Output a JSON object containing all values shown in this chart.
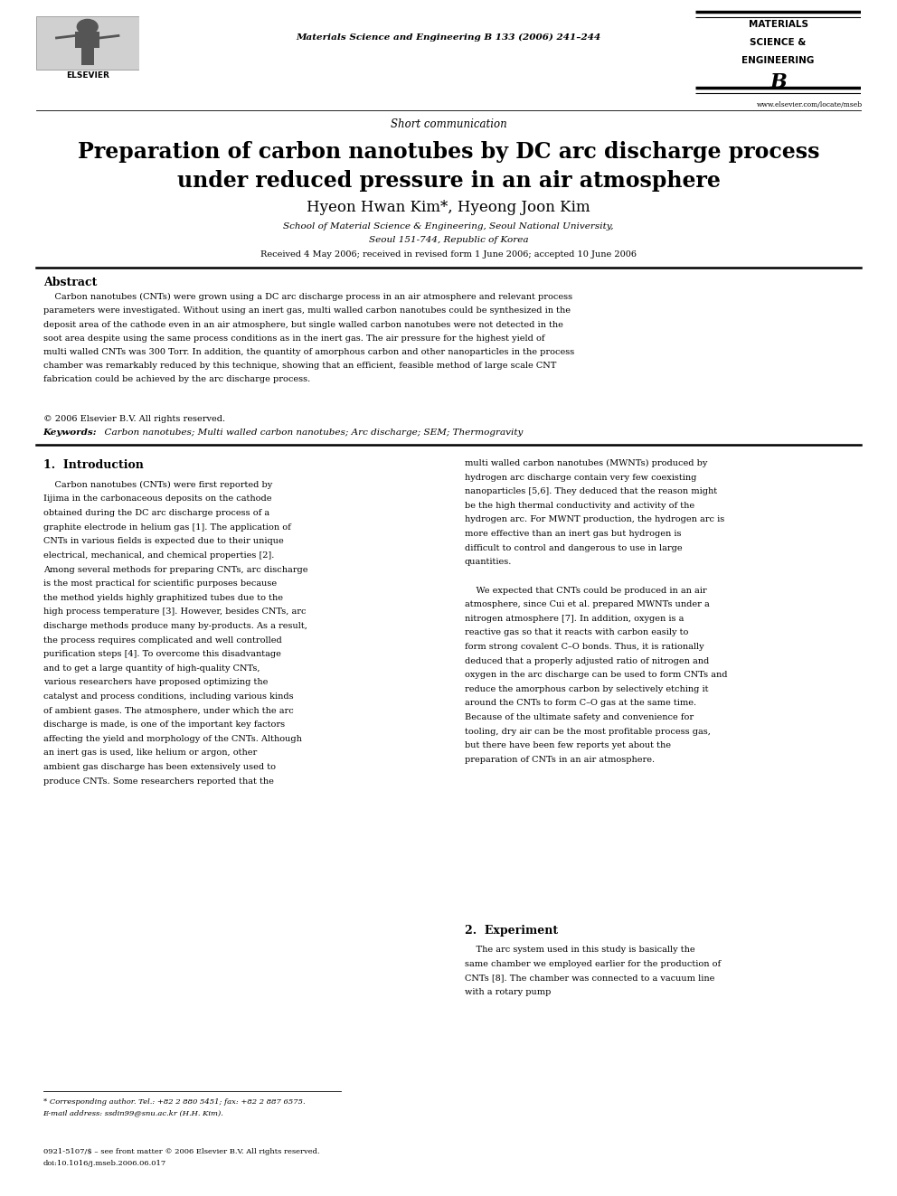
{
  "background_color": "#ffffff",
  "page_width": 9.92,
  "page_height": 13.23,
  "journal_line": "Materials Science and Engineering B 133 (2006) 241–244",
  "website": "www.elsevier.com/locate/mseb",
  "article_type": "Short communication",
  "title_line1": "Preparation of carbon nanotubes by DC arc discharge process",
  "title_line2": "under reduced pressure in an air atmosphere",
  "authors": "Hyeon Hwan Kim*, Hyeong Joon Kim",
  "affiliation1": "School of Material Science & Engineering, Seoul National University,",
  "affiliation2": "Seoul 151-744, Republic of Korea",
  "received": "Received 4 May 2006; received in revised form 1 June 2006; accepted 10 June 2006",
  "abstract_title": "Abstract",
  "abstract_text": "Carbon nanotubes (CNTs) were grown using a DC arc discharge process in an air atmosphere and relevant process parameters were investigated. Without using an inert gas, multi walled carbon nanotubes could be synthesized in the deposit area of the cathode even in an air atmosphere, but single walled carbon nanotubes were not detected in the soot area despite using the same process conditions as in the inert gas. The air pressure for the highest yield of multi walled CNTs was 300 Torr. In addition, the quantity of amorphous carbon and other nanoparticles in the process chamber was remarkably reduced by this technique, showing that an efficient, feasible method of large scale CNT fabrication could be achieved by the arc discharge process.",
  "copyright": "© 2006 Elsevier B.V. All rights reserved.",
  "keywords_label": "Keywords:",
  "keywords_text": "  Carbon nanotubes; Multi walled carbon nanotubes; Arc discharge; SEM; Thermogravity",
  "section1_title": "1.  Introduction",
  "section1_col1": "    Carbon nanotubes (CNTs) were first reported by Iijima in the carbonaceous deposits on the cathode obtained during the DC arc discharge process of a graphite electrode in helium gas [1]. The application of CNTs in various fields is expected due to their unique electrical, mechanical, and chemical properties [2]. Among several methods for preparing CNTs, arc discharge is the most practical for scientific purposes because the method yields highly graphitized tubes due to the high process temperature [3]. However, besides CNTs, arc discharge methods produce many by-products. As a result, the process requires complicated and well controlled purification steps [4]. To overcome this disadvantage and to get a large quantity of high-quality CNTs, various researchers have proposed optimizing the catalyst and process conditions, including various kinds of ambient gases. The atmosphere, under which the arc discharge is made, is one of the important key factors affecting the yield and morphology of the CNTs. Although an inert gas is used, like helium or argon, other ambient gas discharge has been extensively used to produce CNTs. Some researchers reported that the",
  "section1_col2": "multi walled carbon nanotubes (MWNTs) produced by hydrogen arc discharge contain very few coexisting nanoparticles [5,6]. They deduced that the reason might be the high thermal conductivity and activity of the hydrogen arc. For MWNT production, the hydrogen arc is more effective than an inert gas but hydrogen is difficult to control and dangerous to use in large quantities.\n\n    We expected that CNTs could be produced in an air atmosphere, since Cui et al. prepared MWNTs under a nitrogen atmosphere [7]. In addition, oxygen is a reactive gas so that it reacts with carbon easily to form strong covalent C–O bonds. Thus, it is rationally deduced that a properly adjusted ratio of nitrogen and oxygen in the arc discharge can be used to form CNTs and reduce the amorphous carbon by selectively etching it around the CNTs to form C–O gas at the same time. Because of the ultimate safety and convenience for tooling, dry air can be the most profitable process gas, but there have been few reports yet about the preparation of CNTs in an air atmosphere.",
  "section2_title": "2.  Experiment",
  "section2_text": "    The arc system used in this study is basically the same chamber we employed earlier for the production of CNTs [8]. The chamber was connected to a vacuum line with a rotary pump",
  "footnote_star": "* Corresponding author. Tel.: +82 2 880 5451; fax: +82 2 887 6575.",
  "footnote_email": "E-mail address: ssdin99@snu.ac.kr (H.H. Kim).",
  "footer_left1": "0921-5107/$ – see front matter © 2006 Elsevier B.V. All rights reserved.",
  "footer_left2": "doi:10.1016/j.mseb.2006.06.017"
}
